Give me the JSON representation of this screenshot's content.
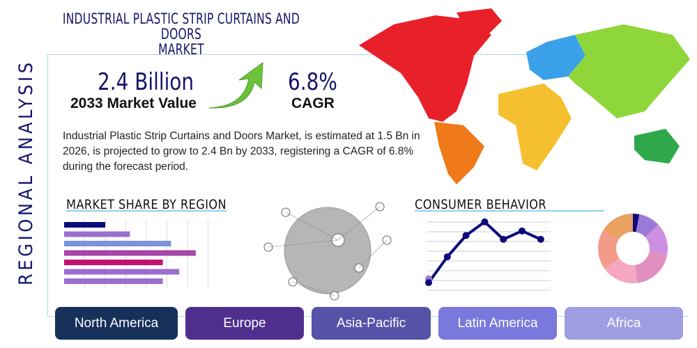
{
  "header": {
    "title_line1": "INDUSTRIAL PLASTIC STRIP CURTAINS AND DOORS",
    "title_line2": "MARKET",
    "side_label": "REGIONAL ANALYSIS"
  },
  "kpis": {
    "market_value": "2.4 Billion",
    "market_value_label": "2033 Market Value",
    "cagr": "6.8%",
    "cagr_label": "CAGR",
    "arrow_icon": "green-up-arrow-icon"
  },
  "description": "Industrial Plastic Strip Curtains and Doors Market, is estimated at 1.5 Bn in 2026, is projected to grow to 2.4 Bn by 2033, registering a CAGR of 6.8% during the forecast period.",
  "market_share": {
    "title": "MARKET SHARE BY REGION",
    "chart_data": {
      "type": "bar",
      "orientation": "horizontal",
      "values": [
        2.0,
        3.2,
        5.2,
        6.4,
        4.8,
        5.6,
        4.8
      ],
      "colors": [
        "#0d0a7a",
        "#9a6fd0",
        "#7b93dd",
        "#a646a8",
        "#c4106e",
        "#9a6fd0",
        "#9a6fd0"
      ],
      "xlim": [
        0,
        7
      ],
      "grid": true
    }
  },
  "consumer_behavior": {
    "title": "CONSUMER BEHAVIOR",
    "line_chart": {
      "type": "line",
      "values": [
        10,
        44,
        72,
        90,
        67,
        78,
        67
      ],
      "extra_point": 15,
      "ylim": [
        0,
        98
      ],
      "color": "#0d0a7a",
      "grid": true
    },
    "donut_chart": {
      "type": "pie",
      "values": [
        3,
        10,
        15,
        20,
        17,
        19,
        16
      ],
      "colors": [
        "#0d0a7a",
        "#9b79d6",
        "#cf8fe0",
        "#e08fbf",
        "#f5a8c0",
        "#f29b8a",
        "#e9a060"
      ]
    }
  },
  "regions": [
    {
      "label": "North America",
      "color": "#16305a"
    },
    {
      "label": "Europe",
      "color": "#4f2e8e"
    },
    {
      "label": "Asia-Pacific",
      "color": "#5552a8"
    },
    {
      "label": "Latin America",
      "color": "#7a78dc"
    },
    {
      "label": "Africa",
      "color": "#a09ee2"
    }
  ],
  "map": {
    "colors": {
      "north_america": "#e8202a",
      "south_america": "#f07a1a",
      "europe": "#3aa0e8",
      "asia": "#8fd63a",
      "africa": "#f5c030",
      "oceania": "#2ea84a"
    }
  }
}
